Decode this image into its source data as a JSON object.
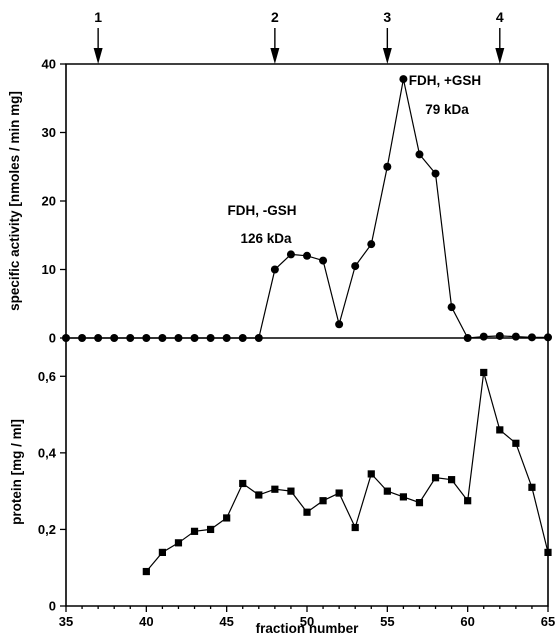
{
  "chart_data": {
    "type": "line",
    "xlabel": "fraction number",
    "xlim": [
      35,
      65
    ],
    "x_ticks": [
      35,
      40,
      45,
      50,
      55,
      60,
      65
    ],
    "markers": [
      {
        "label": "1",
        "x": 37
      },
      {
        "label": "2",
        "x": 48
      },
      {
        "label": "3",
        "x": 55
      },
      {
        "label": "4",
        "x": 62
      }
    ],
    "panels": [
      {
        "ylabel": "specific activity [nmoles / min mg]",
        "ylim": [
          0,
          40
        ],
        "y_ticks": [
          0,
          10,
          20,
          30,
          40
        ],
        "y_tick_labels": [
          "0",
          "10",
          "20",
          "30",
          "40"
        ],
        "marker": "circle",
        "series": [
          {
            "x": [
              35,
              36,
              37,
              38,
              39,
              40,
              41,
              42,
              43,
              44,
              45,
              46,
              47,
              48,
              49,
              50,
              51,
              52,
              53,
              54,
              55,
              56,
              57,
              58,
              59,
              60,
              61,
              62,
              63,
              64,
              65
            ],
            "values": [
              0,
              0,
              0,
              0,
              0,
              0,
              0,
              0,
              0,
              0,
              0,
              0,
              0,
              10,
              12.2,
              12,
              11.3,
              2,
              10.5,
              13.7,
              25,
              37.8,
              26.8,
              24,
              4.5,
              0,
              0.2,
              0.3,
              0.2,
              0.1,
              0.1
            ]
          }
        ],
        "annotations": [
          {
            "lines": [
              "FDH, -GSH",
              "126 kDa"
            ]
          },
          {
            "lines": [
              "FDH, +GSH",
              "79 kDa"
            ]
          }
        ]
      },
      {
        "ylabel": "protein [mg / ml]",
        "ylim": [
          0,
          0.7
        ],
        "y_ticks": [
          0,
          0.2,
          0.4,
          0.6
        ],
        "y_tick_labels": [
          "0",
          "0,2",
          "0,4",
          "0,6"
        ],
        "marker": "square",
        "series": [
          {
            "x": [
              40,
              41,
              42,
              43,
              44,
              45,
              46,
              47,
              48,
              49,
              50,
              51,
              52,
              53,
              54,
              55,
              56,
              57,
              58,
              59,
              60,
              61,
              62,
              63,
              64,
              65
            ],
            "values": [
              0.09,
              0.14,
              0.165,
              0.195,
              0.2,
              0.23,
              0.32,
              0.29,
              0.305,
              0.3,
              0.245,
              0.275,
              0.295,
              0.205,
              0.345,
              0.3,
              0.285,
              0.27,
              0.335,
              0.33,
              0.275,
              0.61,
              0.46,
              0.425,
              0.31,
              0.14
            ]
          }
        ]
      }
    ]
  }
}
